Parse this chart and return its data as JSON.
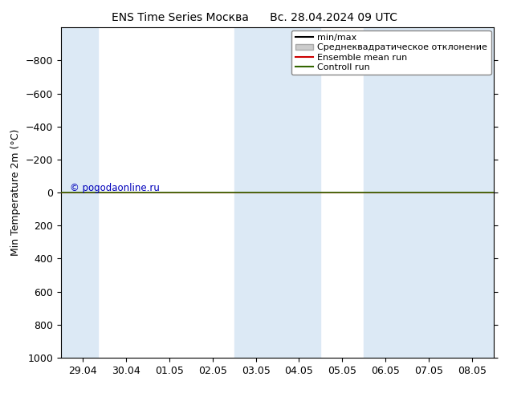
{
  "title_left": "ENS Time Series Москва",
  "title_right": "Вс. 28.04.2024 09 UTC",
  "ylabel": "Min Temperature 2m (°C)",
  "ylim": [
    1000,
    -1000
  ],
  "yticks": [
    -800,
    -600,
    -400,
    -200,
    0,
    200,
    400,
    600,
    800,
    1000
  ],
  "x_dates": [
    "29.04",
    "30.04",
    "01.05",
    "02.05",
    "03.05",
    "04.05",
    "05.05",
    "06.05",
    "07.05",
    "08.05"
  ],
  "x_numeric": [
    0,
    1,
    2,
    3,
    4,
    5,
    6,
    7,
    8,
    9
  ],
  "shaded_columns_ranges": [
    [
      -0.5,
      0.35
    ],
    [
      3.5,
      5.5
    ],
    [
      6.5,
      9.5
    ]
  ],
  "shade_color": "#dce9f5",
  "green_line_y": 0,
  "green_line_color": "#336600",
  "red_line_color": "#cc0000",
  "min_max_color": "#000000",
  "legend_labels": [
    "min/max",
    "Среднеквадратическое отклонение",
    "Ensemble mean run",
    "Controll run"
  ],
  "watermark": "© pogodaonline.ru",
  "watermark_color": "#0000bb",
  "bg_color": "#ffffff",
  "plot_bg_color": "#ffffff",
  "border_color": "#000000",
  "font_size": 9,
  "legend_fontsize": 8
}
